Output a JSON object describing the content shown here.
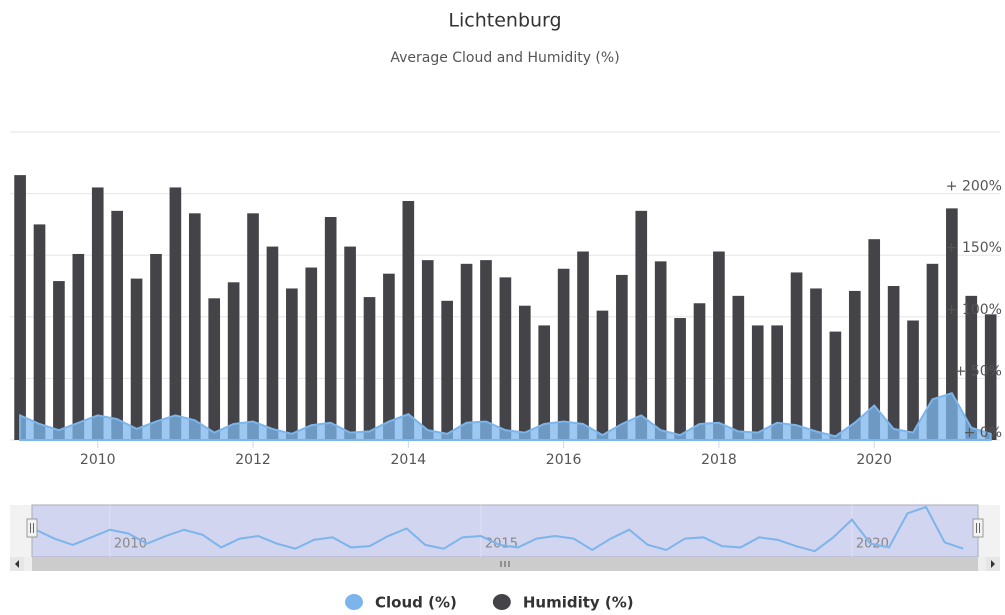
{
  "chart_data": {
    "type": "column",
    "title": "Lichtenburg",
    "subtitle": "Average Cloud and Humidity (%)",
    "x": [
      2009,
      2009.25,
      2009.5,
      2009.75,
      2010,
      2010.25,
      2010.5,
      2010.75,
      2011,
      2011.25,
      2011.5,
      2011.75,
      2012,
      2012.25,
      2012.5,
      2012.75,
      2013,
      2013.25,
      2013.5,
      2013.75,
      2014,
      2014.25,
      2014.5,
      2014.75,
      2015,
      2015.25,
      2015.5,
      2015.75,
      2016,
      2016.25,
      2016.5,
      2016.75,
      2017,
      2017.25,
      2017.5,
      2017.75,
      2018,
      2018.25,
      2018.5,
      2018.75,
      2019,
      2019.25,
      2019.5,
      2019.75,
      2020,
      2020.25,
      2020.5,
      2020.75,
      2021,
      2021.25,
      2021.5
    ],
    "series": [
      {
        "name": "Cloud (%)",
        "type": "area",
        "color": "#7cb5ec",
        "values": [
          20,
          13,
          8,
          14,
          20,
          17,
          9,
          15,
          20,
          16,
          6,
          13,
          15,
          9,
          5,
          12,
          14,
          6,
          7,
          15,
          21,
          8,
          5,
          14,
          15,
          8,
          6,
          13,
          15,
          13,
          4,
          13,
          20,
          8,
          4,
          13,
          14,
          7,
          6,
          14,
          12,
          7,
          3,
          14,
          28,
          9,
          6,
          33,
          38,
          10,
          5
        ]
      },
      {
        "name": "Humidity (%)",
        "type": "column",
        "color": "#434348",
        "values": [
          215,
          175,
          129,
          151,
          205,
          186,
          131,
          151,
          205,
          184,
          115,
          128,
          184,
          157,
          123,
          140,
          181,
          157,
          116,
          135,
          194,
          146,
          113,
          143,
          146,
          132,
          109,
          93,
          139,
          153,
          105,
          134,
          186,
          145,
          99,
          111,
          153,
          117,
          93,
          93,
          136,
          123,
          88,
          121,
          163,
          125,
          97,
          143,
          188,
          117,
          102
        ]
      }
    ],
    "xlim": [
      2008.87,
      2021.62
    ],
    "xticks": [
      2010,
      2012,
      2014,
      2016,
      2018,
      2020
    ],
    "ylim": [
      0,
      250
    ],
    "yticks": [
      {
        "value": 0,
        "label": "+ 0%"
      },
      {
        "value": 50,
        "label": "+ 50%"
      },
      {
        "value": 100,
        "label": "+ 100%"
      },
      {
        "value": 150,
        "label": "+ 150%"
      },
      {
        "value": 200,
        "label": "+ 200%"
      },
      {
        "value": 250,
        "label": ""
      }
    ],
    "grid": true,
    "legend": "bottom",
    "navigator": {
      "xlim": [
        2008.95,
        2021.7
      ],
      "xticks": [
        2010,
        2015,
        2020
      ]
    }
  }
}
